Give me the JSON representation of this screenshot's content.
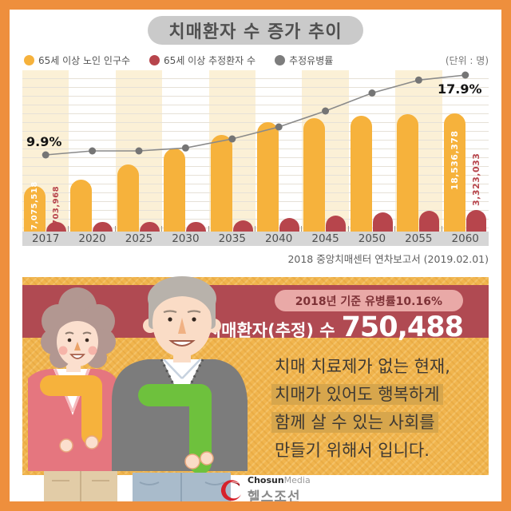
{
  "title": "치매환자 수 증가 추이",
  "legend": {
    "items": [
      {
        "name": "population-dot",
        "label": "65세 이상 노인 인구수",
        "color": "#F6B23C"
      },
      {
        "name": "patients-dot",
        "label": "65세 이상 추정환자 수",
        "color": "#B7454C"
      },
      {
        "name": "rate-dot",
        "label": "추정유병률",
        "color": "#7D7D7D"
      }
    ],
    "unit_label": "(단위 : 명)"
  },
  "chart_data": {
    "type": "bar+line",
    "title": "치매환자 수 증가 추이",
    "unit": "명",
    "categories": [
      "2017",
      "2020",
      "2025",
      "2030",
      "2035",
      "2040",
      "2045",
      "2050",
      "2055",
      "2060"
    ],
    "series": [
      {
        "name": "65세 이상 노인 인구수",
        "type": "bar",
        "color": "#F6B23C",
        "values": [
          7075518,
          8130000,
          10510000,
          12980000,
          15180000,
          17120000,
          17760000,
          18130000,
          18370000,
          18536378
        ]
      },
      {
        "name": "65세 이상 추정환자 수",
        "type": "bar",
        "color": "#B7454C",
        "values": [
          703968,
          840000,
          1080000,
          1360000,
          1700000,
          2170000,
          2520000,
          3020000,
          3230000,
          3323033
        ]
      },
      {
        "name": "추정유병률",
        "type": "line",
        "color": "#8A8A8A",
        "unit": "%",
        "values": [
          9.9,
          10.3,
          10.3,
          10.6,
          11.5,
          12.7,
          14.3,
          16.1,
          17.4,
          17.9
        ]
      }
    ],
    "annotations": {
      "first_rate": "9.9%",
      "last_rate": "17.9%",
      "first_population": "7,075,518",
      "first_patients": "703,968",
      "last_population": "18,536,378",
      "last_patients": "3,323,033"
    },
    "ylim": [
      0,
      20000000
    ],
    "grid": true,
    "legend_position": "top-left"
  },
  "source": "2018 중앙치매센터 연차보고서 (2019.02.01)",
  "banner": {
    "pill": "2018년 기준 유병률10.16%",
    "label": "치매환자(추정) 수",
    "value": "750,488"
  },
  "message": {
    "lines": [
      {
        "text": "치매 치료제가 없는 현재,",
        "highlight": false
      },
      {
        "text": "치매가 있어도 행복하게",
        "highlight": true
      },
      {
        "text": "함께 살 수 있는 사회를",
        "highlight": true
      },
      {
        "text": "만들기 위해서 입니다.",
        "highlight": false
      }
    ]
  },
  "logo": {
    "brand_bold": "Chosun",
    "brand_light": "Media",
    "brand_korean": "헬스조선",
    "accent_color": "#D6222B"
  },
  "colors": {
    "frame_border": "#EE8F3D",
    "title_pill_bg": "#CACACA",
    "stripe": "#FBF0D6",
    "axis_strip": "#D6D6D6",
    "tan_background": "#F1B54E",
    "red_band": "#B04A52",
    "highlight": "#D7A64C"
  }
}
